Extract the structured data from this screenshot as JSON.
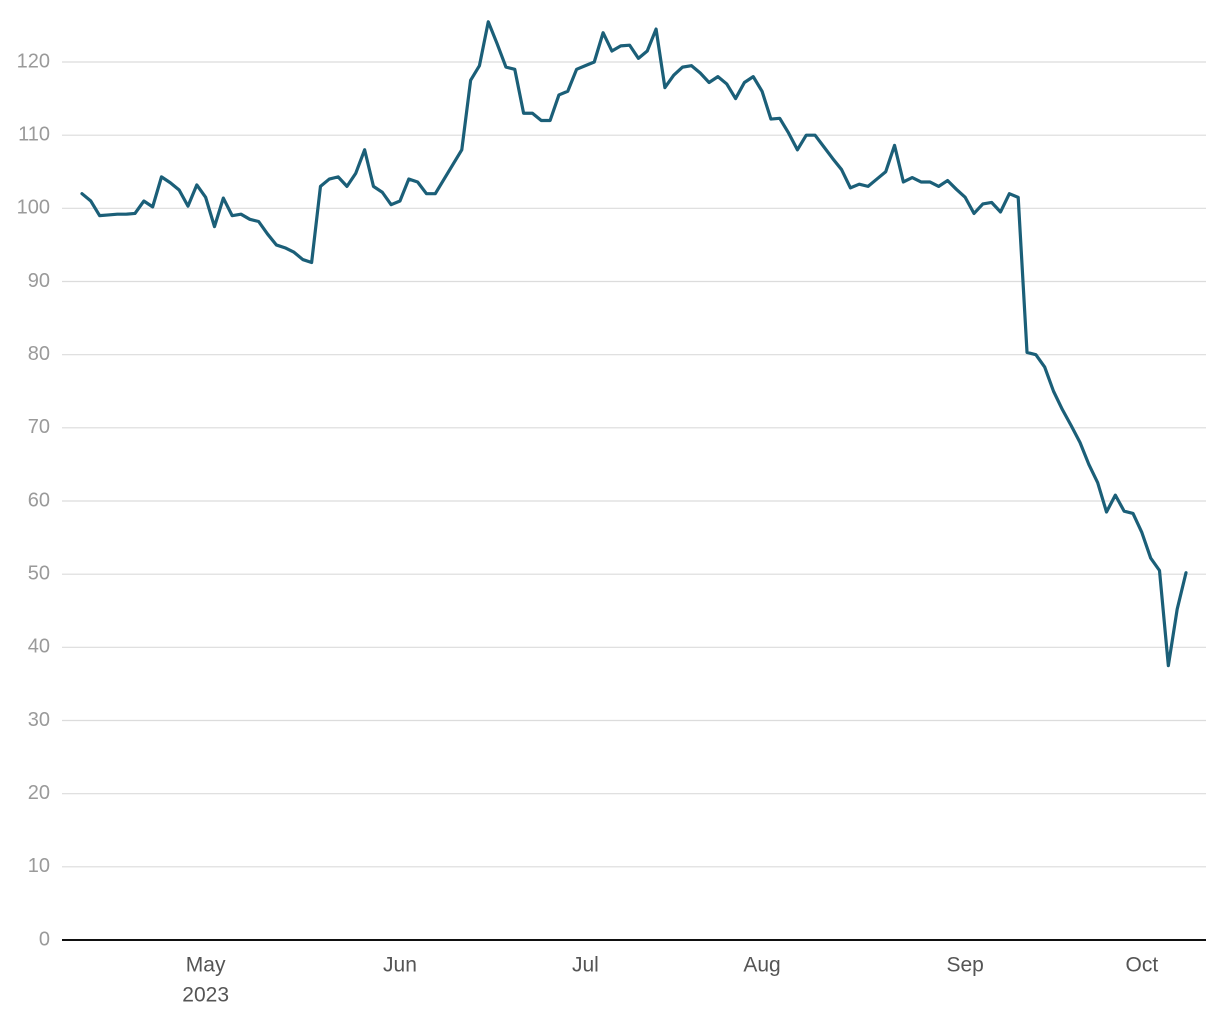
{
  "chart_data": {
    "type": "line",
    "categories": [
      null,
      null,
      null,
      null,
      null,
      null,
      null,
      null,
      null,
      null,
      null,
      null,
      null,
      null,
      "May",
      null,
      null,
      null,
      null,
      null,
      null,
      null,
      null,
      null,
      null,
      null,
      null,
      null,
      null,
      null,
      null,
      null,
      null,
      null,
      null,
      null,
      "Jun",
      null,
      null,
      null,
      null,
      null,
      null,
      null,
      null,
      null,
      null,
      null,
      null,
      null,
      null,
      null,
      null,
      null,
      null,
      null,
      null,
      "Jul",
      null,
      null,
      null,
      null,
      null,
      null,
      null,
      null,
      null,
      null,
      null,
      null,
      null,
      null,
      null,
      null,
      null,
      null,
      null,
      "Aug",
      null,
      null,
      null,
      null,
      null,
      null,
      null,
      null,
      null,
      null,
      null,
      null,
      null,
      null,
      null,
      null,
      null,
      null,
      null,
      null,
      null,
      null,
      "Sep",
      null,
      null,
      null,
      null,
      null,
      null,
      null,
      null,
      null,
      null,
      null,
      null,
      null,
      null,
      null,
      null,
      null,
      null,
      null,
      "Oct",
      null,
      null,
      null,
      null,
      null
    ],
    "year_label": "2023",
    "values": [
      102,
      101,
      99,
      99.1,
      99.2,
      99.2,
      99.3,
      101,
      100.2,
      104.3,
      103.5,
      102.5,
      100.3,
      103.2,
      101.5,
      97.5,
      101.4,
      99,
      99.2,
      98.5,
      98.2,
      96.5,
      95,
      94.6,
      94,
      93,
      92.6,
      103,
      104,
      104.3,
      103,
      104.8,
      108,
      103,
      102.2,
      100.5,
      101,
      104,
      103.6,
      102,
      102,
      104,
      106,
      108,
      117.5,
      119.5,
      125.5,
      122.5,
      119.3,
      119,
      113,
      113,
      112,
      112,
      115.5,
      116,
      119,
      119.5,
      120,
      124,
      121.5,
      122.2,
      122.3,
      120.5,
      121.5,
      124.5,
      116.5,
      118.2,
      119.3,
      119.5,
      118.5,
      117.2,
      118,
      117,
      115,
      117.2,
      118,
      116,
      112.2,
      112.3,
      110.3,
      108,
      110,
      110,
      108.4,
      106.8,
      105.3,
      102.8,
      103.3,
      103,
      104,
      105,
      108.6,
      103.6,
      104.2,
      103.6,
      103.6,
      103,
      103.8,
      102.6,
      101.5,
      99.3,
      100.6,
      100.8,
      99.5,
      102,
      101.5,
      80.3,
      80,
      78.3,
      75,
      72.5,
      70.3,
      68,
      65,
      62.5,
      58.5,
      60.8,
      58.6,
      58.3,
      55.7,
      52.2,
      50.5,
      37.5,
      45.2,
      50.2
    ],
    "color": "#1b5f78",
    "ylim": [
      0,
      125
    ],
    "yticks": [
      0,
      10,
      20,
      30,
      40,
      50,
      60,
      70,
      80,
      90,
      100,
      110,
      120
    ],
    "grid": true
  }
}
